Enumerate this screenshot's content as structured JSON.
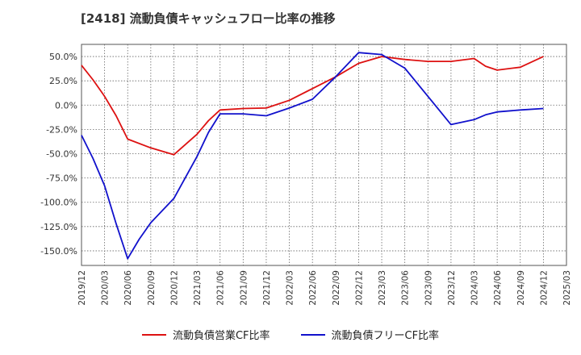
{
  "chart_data": {
    "type": "line",
    "title": "[2418]  流動負債キャッシュフロー比率の推移",
    "xlabel": "",
    "ylabel": "",
    "ylim": [
      -165,
      62.5
    ],
    "yticks": [
      50,
      25,
      0,
      -25,
      -50,
      -75,
      -100,
      -125,
      -150
    ],
    "ytick_labels": [
      "50.0%",
      "25.0%",
      "0.0%",
      "-25.0%",
      "-50.0%",
      "-75.0%",
      "-100.0%",
      "-125.0%",
      "-150.0%"
    ],
    "categories": [
      "2019/12",
      "2020/03",
      "2020/06",
      "2020/09",
      "2020/12",
      "2021/03",
      "2021/06",
      "2021/09",
      "2021/12",
      "2022/03",
      "2022/06",
      "2022/09",
      "2022/12",
      "2023/03",
      "2023/06",
      "2023/09",
      "2023/12",
      "2024/03",
      "2024/06",
      "2024/09",
      "2024/12",
      "2025/03"
    ],
    "grid": true,
    "legend_position": "bottom",
    "series": [
      {
        "name": "流動負債営業CF比率",
        "color": "#dd1111",
        "points": [
          {
            "x": 0,
            "y": 41
          },
          {
            "x": 0.5,
            "y": 26
          },
          {
            "x": 1,
            "y": 9
          },
          {
            "x": 1.5,
            "y": -11
          },
          {
            "x": 2,
            "y": -35
          },
          {
            "x": 3,
            "y": -44
          },
          {
            "x": 4,
            "y": -51
          },
          {
            "x": 5,
            "y": -30
          },
          {
            "x": 5.5,
            "y": -16
          },
          {
            "x": 6,
            "y": -5
          },
          {
            "x": 7,
            "y": -3.5
          },
          {
            "x": 8,
            "y": -3
          },
          {
            "x": 9,
            "y": 5
          },
          {
            "x": 10,
            "y": 17
          },
          {
            "x": 11,
            "y": 29
          },
          {
            "x": 12,
            "y": 43
          },
          {
            "x": 13,
            "y": 50
          },
          {
            "x": 14,
            "y": 47
          },
          {
            "x": 15,
            "y": 45
          },
          {
            "x": 16,
            "y": 45
          },
          {
            "x": 17,
            "y": 48
          },
          {
            "x": 17.5,
            "y": 40
          },
          {
            "x": 18,
            "y": 36
          },
          {
            "x": 19,
            "y": 39
          },
          {
            "x": 20,
            "y": 50
          }
        ]
      },
      {
        "name": "流動負債フリーCF比率",
        "color": "#1111cc",
        "points": [
          {
            "x": 0,
            "y": -31
          },
          {
            "x": 0.5,
            "y": -55
          },
          {
            "x": 1,
            "y": -83
          },
          {
            "x": 1.5,
            "y": -122
          },
          {
            "x": 2,
            "y": -158
          },
          {
            "x": 2.5,
            "y": -138
          },
          {
            "x": 3,
            "y": -121
          },
          {
            "x": 4,
            "y": -96
          },
          {
            "x": 5,
            "y": -53
          },
          {
            "x": 5.5,
            "y": -28
          },
          {
            "x": 6,
            "y": -9
          },
          {
            "x": 7,
            "y": -9
          },
          {
            "x": 8,
            "y": -11
          },
          {
            "x": 9,
            "y": -3
          },
          {
            "x": 10,
            "y": 6
          },
          {
            "x": 11,
            "y": 29
          },
          {
            "x": 12,
            "y": 54
          },
          {
            "x": 13,
            "y": 52
          },
          {
            "x": 14,
            "y": 38
          },
          {
            "x": 15,
            "y": 9
          },
          {
            "x": 16,
            "y": -20
          },
          {
            "x": 17,
            "y": -15
          },
          {
            "x": 17.5,
            "y": -10
          },
          {
            "x": 18,
            "y": -7
          },
          {
            "x": 19,
            "y": -5
          },
          {
            "x": 20,
            "y": -3.5
          }
        ]
      }
    ]
  }
}
